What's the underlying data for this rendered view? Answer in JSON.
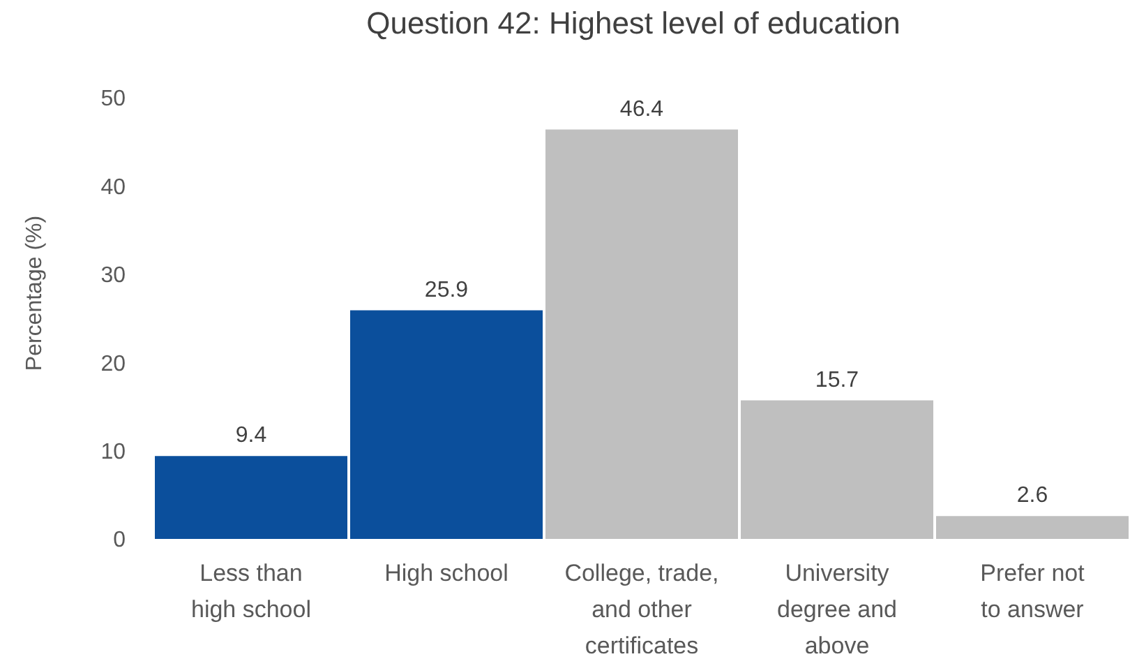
{
  "chart_data": {
    "type": "bar",
    "title": "Question 42: Highest level of education",
    "ylabel": "Percentage (%)",
    "categories": [
      "Less than\nhigh school",
      "High school",
      "College, trade,\nand other\ncertificates",
      "University\ndegree and\nabove",
      "Prefer not\nto answer"
    ],
    "values": [
      9.4,
      25.9,
      46.4,
      15.7,
      2.6
    ],
    "colors": [
      "#0b4f9c",
      "#0b4f9c",
      "#bfbfbf",
      "#bfbfbf",
      "#bfbfbf"
    ],
    "ylim": [
      0,
      50
    ],
    "yticks": [
      0,
      10,
      20,
      30,
      40,
      50
    ],
    "data_labels": true
  }
}
